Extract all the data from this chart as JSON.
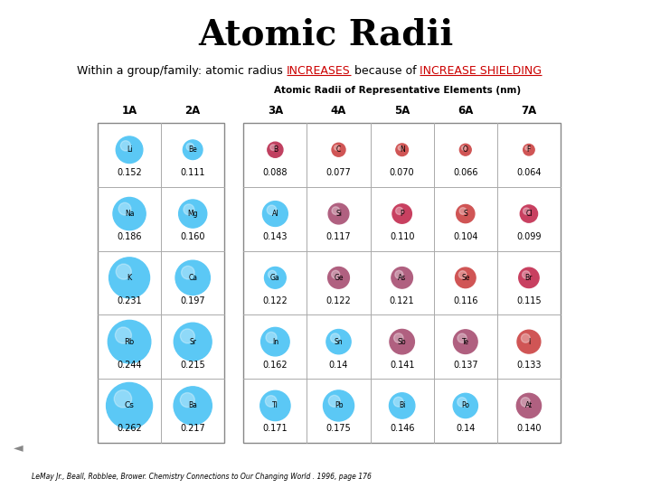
{
  "title": "Atomic Radii",
  "subtitle_plain": "Within a group/family: atomic radius ",
  "subtitle_red1": "INCREASES",
  "subtitle_mid": " because of ",
  "subtitle_red2": "INCREASE SHIELDING",
  "table_title": "Atomic Radii of Representative Elements (nm)",
  "columns": [
    "1A",
    "2A",
    "3A",
    "4A",
    "5A",
    "6A",
    "7A"
  ],
  "rows": [
    {
      "elements": [
        "Li",
        "Be",
        "B",
        "C",
        "N",
        "O",
        "F"
      ],
      "radii": [
        "0.152",
        "0.111",
        "0.088",
        "0.077",
        "0.070",
        "0.066",
        "0.064"
      ],
      "colors": [
        "#5bc8f5",
        "#5bc8f5",
        "#c04060",
        "#d05555",
        "#d05555",
        "#d05555",
        "#d05555"
      ],
      "sizes": [
        0.152,
        0.111,
        0.088,
        0.077,
        0.07,
        0.066,
        0.064
      ]
    },
    {
      "elements": [
        "Na",
        "Mg",
        "Al",
        "Si",
        "P",
        "S",
        "Cl"
      ],
      "radii": [
        "0.186",
        "0.160",
        "0.143",
        "0.117",
        "0.110",
        "0.104",
        "0.099"
      ],
      "colors": [
        "#5bc8f5",
        "#5bc8f5",
        "#5bc8f5",
        "#b06080",
        "#c84060",
        "#d05555",
        "#c84060"
      ],
      "sizes": [
        0.186,
        0.16,
        0.143,
        0.117,
        0.11,
        0.104,
        0.099
      ]
    },
    {
      "elements": [
        "K",
        "Ca",
        "Ga",
        "Ge",
        "As",
        "Se",
        "Br"
      ],
      "radii": [
        "0.231",
        "0.197",
        "0.122",
        "0.122",
        "0.121",
        "0.116",
        "0.115"
      ],
      "colors": [
        "#5bc8f5",
        "#5bc8f5",
        "#5bc8f5",
        "#b06080",
        "#b06080",
        "#d05555",
        "#c84060"
      ],
      "sizes": [
        0.231,
        0.197,
        0.122,
        0.122,
        0.121,
        0.116,
        0.115
      ]
    },
    {
      "elements": [
        "Rb",
        "Sr",
        "In",
        "Sn",
        "Sb",
        "Te",
        "I"
      ],
      "radii": [
        "0.244",
        "0.215",
        "0.162",
        "0.14",
        "0.141",
        "0.137",
        "0.133"
      ],
      "colors": [
        "#5bc8f5",
        "#5bc8f5",
        "#5bc8f5",
        "#5bc8f5",
        "#b06080",
        "#b06080",
        "#d05555"
      ],
      "sizes": [
        0.244,
        0.215,
        0.162,
        0.14,
        0.141,
        0.137,
        0.133
      ]
    },
    {
      "elements": [
        "Cs",
        "Ba",
        "Tl",
        "Pb",
        "Bi",
        "Po",
        "At"
      ],
      "radii": [
        "0.262",
        "0.217",
        "0.171",
        "0.175",
        "0.146",
        "0.14",
        "0.140"
      ],
      "colors": [
        "#5bc8f5",
        "#5bc8f5",
        "#5bc8f5",
        "#5bc8f5",
        "#5bc8f5",
        "#5bc8f5",
        "#b06080"
      ],
      "sizes": [
        0.262,
        0.217,
        0.171,
        0.175,
        0.146,
        0.14,
        0.14
      ]
    }
  ],
  "citation": "LeMay Jr., Beall, Robblee, Brower. Chemistry Connections to Our Changing World . 1996, page 176",
  "bg_color": "#ffffff"
}
